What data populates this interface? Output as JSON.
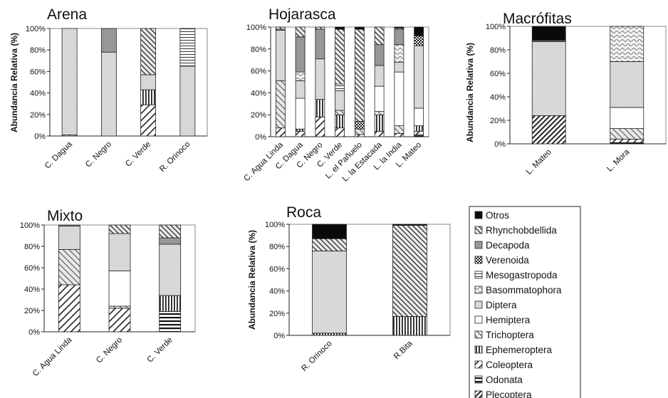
{
  "chart_data": [
    {
      "type": "bar",
      "stacked": true,
      "title": "Arena",
      "ylabel": "Abundancia Relativa (%)",
      "ylim": [
        0,
        100
      ],
      "yticks": [
        "0%",
        "20%",
        "40%",
        "60%",
        "80%",
        "100%"
      ],
      "categories": [
        "C. Dagua",
        "C. Negro",
        "C. Verde",
        "R. Orinoco"
      ],
      "series": [
        {
          "name": "Plecoptera",
          "values": [
            0,
            0,
            0,
            0
          ]
        },
        {
          "name": "Odonata",
          "values": [
            0,
            0,
            0,
            0
          ]
        },
        {
          "name": "Coleoptera",
          "values": [
            0,
            0,
            29,
            0
          ]
        },
        {
          "name": "Ephemeroptera",
          "values": [
            0,
            0,
            14,
            0
          ]
        },
        {
          "name": "Trichoptera",
          "values": [
            1,
            0,
            0,
            0
          ]
        },
        {
          "name": "Hemiptera",
          "values": [
            0,
            0,
            0,
            0
          ]
        },
        {
          "name": "Diptera",
          "values": [
            99,
            78,
            14,
            65
          ]
        },
        {
          "name": "Basommatophora",
          "values": [
            0,
            0,
            0,
            0
          ]
        },
        {
          "name": "Mesogastropoda",
          "values": [
            0,
            0,
            0,
            35
          ]
        },
        {
          "name": "Verenoida",
          "values": [
            0,
            0,
            0,
            0
          ]
        },
        {
          "name": "Decapoda",
          "values": [
            0,
            22,
            0,
            0
          ]
        },
        {
          "name": "Rhynchobdellida",
          "values": [
            0,
            0,
            43,
            0
          ]
        },
        {
          "name": "Otros",
          "values": [
            0,
            0,
            0,
            0
          ]
        }
      ]
    },
    {
      "type": "bar",
      "stacked": true,
      "title": "Hojarasca",
      "ylim": [
        0,
        100
      ],
      "yticks": [
        "0%",
        "20%",
        "40%",
        "60%",
        "80%",
        "100%"
      ],
      "categories": [
        "C. Agua Linda",
        "C. Dagua",
        "C. Negro",
        "C. Verde",
        "L. el Pañuelo",
        "L. la Estacada",
        "L. la India",
        "L. Mateo"
      ],
      "series": [
        {
          "name": "Plecoptera",
          "values": [
            0,
            0,
            0,
            0,
            0,
            0,
            0,
            0
          ]
        },
        {
          "name": "Odonata",
          "values": [
            0,
            0,
            0,
            0,
            0,
            0,
            0,
            2
          ]
        },
        {
          "name": "Coleoptera",
          "values": [
            8,
            5,
            18,
            8,
            2,
            5,
            3,
            3
          ]
        },
        {
          "name": "Ephemeroptera",
          "values": [
            0,
            2,
            16,
            12,
            0,
            15,
            0,
            5
          ]
        },
        {
          "name": "Trichoptera",
          "values": [
            43,
            0,
            0,
            4,
            5,
            3,
            7,
            0
          ]
        },
        {
          "name": "Hemiptera",
          "values": [
            0,
            28,
            0,
            0,
            0,
            23,
            49,
            16
          ]
        },
        {
          "name": "Diptera",
          "values": [
            46,
            16,
            37,
            18,
            0,
            19,
            9,
            57
          ]
        },
        {
          "name": "Basommatophora",
          "values": [
            0,
            8,
            0,
            0,
            0,
            0,
            16,
            0
          ]
        },
        {
          "name": "Mesogastropoda",
          "values": [
            0,
            0,
            0,
            6,
            0,
            0,
            0,
            0
          ]
        },
        {
          "name": "Verenoida",
          "values": [
            0,
            0,
            0,
            0,
            7,
            0,
            0,
            9
          ]
        },
        {
          "name": "Decapoda",
          "values": [
            1,
            32,
            27,
            0,
            0,
            19,
            14,
            0
          ]
        },
        {
          "name": "Rhynchobdellida",
          "values": [
            2,
            9,
            2,
            50,
            84,
            16,
            1,
            0
          ]
        },
        {
          "name": "Otros",
          "values": [
            0,
            0,
            0,
            2,
            2,
            0,
            1,
            8
          ]
        }
      ]
    },
    {
      "type": "bar",
      "stacked": true,
      "title": "Macrófitas",
      "ylabel": "Abundancia Relativa (%)",
      "ylim": [
        0,
        100
      ],
      "yticks": [
        "0%",
        "20%",
        "40%",
        "60%",
        "80%",
        "100%"
      ],
      "categories": [
        "L. Mateo",
        "L. Mora"
      ],
      "series": [
        {
          "name": "Plecoptera",
          "values": [
            24,
            0
          ]
        },
        {
          "name": "Odonata",
          "values": [
            0,
            1
          ]
        },
        {
          "name": "Coleoptera",
          "values": [
            0,
            3
          ]
        },
        {
          "name": "Ephemeroptera",
          "values": [
            0,
            0
          ]
        },
        {
          "name": "Trichoptera",
          "values": [
            0,
            9
          ]
        },
        {
          "name": "Hemiptera",
          "values": [
            0,
            18
          ]
        },
        {
          "name": "Diptera",
          "values": [
            63,
            39
          ]
        },
        {
          "name": "Basommatophora",
          "values": [
            0,
            30
          ]
        },
        {
          "name": "Mesogastropoda",
          "values": [
            0,
            0
          ]
        },
        {
          "name": "Verenoida",
          "values": [
            0,
            0
          ]
        },
        {
          "name": "Decapoda",
          "values": [
            1,
            0
          ]
        },
        {
          "name": "Rhynchobdellida",
          "values": [
            0,
            0
          ]
        },
        {
          "name": "Otros",
          "values": [
            12,
            0
          ]
        }
      ]
    },
    {
      "type": "bar",
      "stacked": true,
      "title": "Mixto",
      "ylim": [
        0,
        100
      ],
      "yticks": [
        "0%",
        "20%",
        "40%",
        "60%",
        "80%",
        "100%"
      ],
      "categories": [
        "C. Agua Linda",
        "C. Negro",
        "C. Verde"
      ],
      "series": [
        {
          "name": "Plecoptera",
          "values": [
            0,
            0,
            0
          ]
        },
        {
          "name": "Odonata",
          "values": [
            0,
            0,
            19
          ]
        },
        {
          "name": "Coleoptera",
          "values": [
            44,
            22,
            0
          ]
        },
        {
          "name": "Ephemeroptera",
          "values": [
            0,
            0,
            15
          ]
        },
        {
          "name": "Trichoptera",
          "values": [
            33,
            2,
            0
          ]
        },
        {
          "name": "Hemiptera",
          "values": [
            0,
            33,
            0
          ]
        },
        {
          "name": "Diptera",
          "values": [
            22,
            35,
            48
          ]
        },
        {
          "name": "Basommatophora",
          "values": [
            0,
            0,
            0
          ]
        },
        {
          "name": "Mesogastropoda",
          "values": [
            0,
            0,
            0
          ]
        },
        {
          "name": "Verenoida",
          "values": [
            0,
            0,
            0
          ]
        },
        {
          "name": "Decapoda",
          "values": [
            1,
            0,
            6
          ]
        },
        {
          "name": "Rhynchobdellida",
          "values": [
            0,
            8,
            12
          ]
        },
        {
          "name": "Otros",
          "values": [
            0,
            0,
            0
          ]
        }
      ]
    },
    {
      "type": "bar",
      "stacked": true,
      "title": "Roca",
      "ylabel": "Abundancia Relativa (%)",
      "ylim": [
        0,
        100
      ],
      "yticks": [
        "0%",
        "20%",
        "40%",
        "60%",
        "80%",
        "100%"
      ],
      "categories": [
        "R. Orinoco",
        "R.Bita"
      ],
      "series": [
        {
          "name": "Plecoptera",
          "values": [
            0,
            0
          ]
        },
        {
          "name": "Odonata",
          "values": [
            0,
            0
          ]
        },
        {
          "name": "Coleoptera",
          "values": [
            0,
            0
          ]
        },
        {
          "name": "Ephemeroptera",
          "values": [
            2,
            17
          ]
        },
        {
          "name": "Trichoptera",
          "values": [
            0,
            0
          ]
        },
        {
          "name": "Hemiptera",
          "values": [
            0,
            0
          ]
        },
        {
          "name": "Diptera",
          "values": [
            74,
            0
          ]
        },
        {
          "name": "Basommatophora",
          "values": [
            0,
            0
          ]
        },
        {
          "name": "Mesogastropoda",
          "values": [
            0,
            0
          ]
        },
        {
          "name": "Verenoida",
          "values": [
            0,
            0
          ]
        },
        {
          "name": "Decapoda",
          "values": [
            0,
            0
          ]
        },
        {
          "name": "Rhynchobdellida",
          "values": [
            11,
            82
          ]
        },
        {
          "name": "Otros",
          "values": [
            13,
            1
          ]
        }
      ]
    }
  ],
  "legend": {
    "items": [
      {
        "name": "Otros",
        "pattern": "solid-black"
      },
      {
        "name": "Rhynchobdellida",
        "pattern": "diag-up-dense"
      },
      {
        "name": "Decapoda",
        "pattern": "dark-grey"
      },
      {
        "name": "Verenoida",
        "pattern": "checker-black"
      },
      {
        "name": "Mesogastropoda",
        "pattern": "horizontal-lines"
      },
      {
        "name": "Basommatophora",
        "pattern": "wave"
      },
      {
        "name": "Diptera",
        "pattern": "light-grey"
      },
      {
        "name": "Hemiptera",
        "pattern": "white"
      },
      {
        "name": "Trichoptera",
        "pattern": "diag-up-light"
      },
      {
        "name": "Ephemeroptera",
        "pattern": "vertical-lines"
      },
      {
        "name": "Coleoptera",
        "pattern": "diag-down"
      },
      {
        "name": "Odonata",
        "pattern": "horizontal-thick"
      },
      {
        "name": "Plecoptera",
        "pattern": "diag-down-dense"
      }
    ]
  }
}
